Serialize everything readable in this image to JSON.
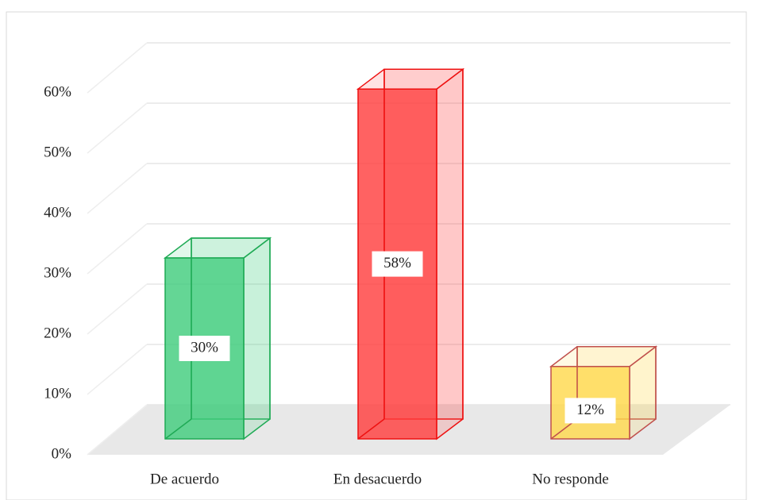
{
  "chart_data": {
    "type": "bar3d",
    "categories": [
      "De acuerdo",
      "En desacuerdo",
      "No responde"
    ],
    "values": [
      30,
      58,
      12
    ],
    "value_labels": [
      "30%",
      "58%",
      "12%"
    ],
    "colors": [
      "#3dcc7a",
      "#ff3b3b",
      "#ffd84a"
    ],
    "edge_colors": [
      "#1faa55",
      "#ee1111",
      "#c0504d"
    ],
    "ylim": [
      0,
      60
    ],
    "yticks": [
      {
        "value": 0,
        "label": "0%"
      },
      {
        "value": 10,
        "label": "10%"
      },
      {
        "value": 20,
        "label": "20%"
      },
      {
        "value": 30,
        "label": "30%"
      },
      {
        "value": 40,
        "label": "40%"
      },
      {
        "value": 50,
        "label": "50%"
      },
      {
        "value": 60,
        "label": "60%"
      }
    ],
    "grid": true
  }
}
